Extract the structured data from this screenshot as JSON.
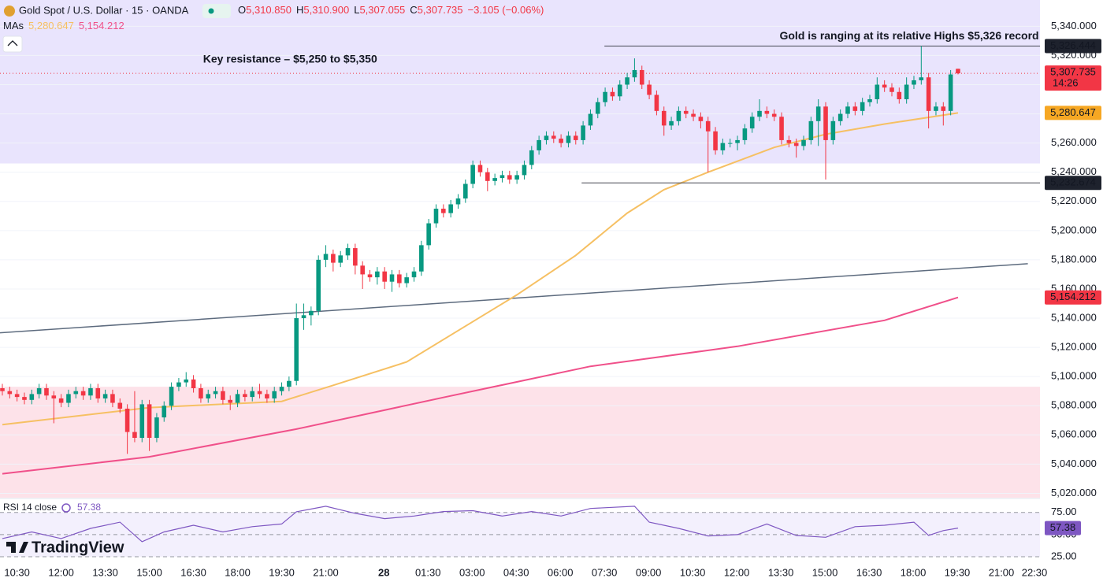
{
  "chart_data": {
    "type": "candlestick",
    "title": "Gold Spot / U.S. Dollar · 15 · OANDA",
    "ohlc_header": [
      {
        "key": "O",
        "value": "5,310.850"
      },
      {
        "key": "H",
        "value": "5,310.900"
      },
      {
        "key": "L",
        "value": "5,307.055"
      },
      {
        "key": "C",
        "value": "5,307.735"
      }
    ],
    "change": "−3.105 (−0.06%)",
    "ma_header": {
      "label": "MAs",
      "values": [
        "5,280.647",
        "5,154.212"
      ]
    },
    "up_color": "#089981",
    "down_color": "#f23645",
    "open": [
      5092,
      5090,
      5088,
      5086,
      5084,
      5088,
      5092,
      5087,
      5085,
      5082,
      5088,
      5090,
      5087,
      5092,
      5085,
      5088,
      5082,
      5078,
      5062,
      5058,
      5081,
      5058,
      5072,
      5080,
      5093,
      5096,
      5098,
      5092,
      5085,
      5088,
      5090,
      5084,
      5082,
      5088,
      5086,
      5090,
      5088,
      5085,
      5090,
      5093,
      5097,
      5140,
      5142,
      5145,
      5180,
      5184,
      5178,
      5183,
      5188,
      5176,
      5170,
      5168,
      5172,
      5165,
      5170,
      5164,
      5168,
      5172,
      5190,
      5205,
      5215,
      5212,
      5218,
      5222,
      5232,
      5245,
      5240,
      5234,
      5236,
      5238,
      5235,
      5238,
      5245,
      5255,
      5262,
      5265,
      5263,
      5260,
      5265,
      5262,
      5272,
      5280,
      5288,
      5295,
      5292,
      5300,
      5305,
      5310,
      5300,
      5293,
      5282,
      5272,
      5275,
      5282,
      5280,
      5278,
      5275,
      5268,
      5255,
      5260,
      5260,
      5262,
      5270,
      5278,
      5282,
      5280,
      5278,
      5262,
      5260,
      5258,
      5262,
      5275,
      5285,
      5262,
      5275,
      5280,
      5285,
      5282,
      5288,
      5290,
      5300,
      5298,
      5295,
      5290,
      5300,
      5303,
      5305,
      5282,
      5285,
      5282,
      5310.85
    ],
    "high": [
      5095,
      5093,
      5091,
      5089,
      5091,
      5095,
      5095,
      5090,
      5088,
      5091,
      5093,
      5093,
      5095,
      5095,
      5091,
      5091,
      5085,
      5081,
      5090,
      5084,
      5084,
      5075,
      5083,
      5096,
      5099,
      5103,
      5101,
      5095,
      5091,
      5093,
      5093,
      5087,
      5091,
      5091,
      5093,
      5095,
      5091,
      5093,
      5096,
      5100,
      5150,
      5150,
      5148,
      5183,
      5190,
      5187,
      5186,
      5191,
      5191,
      5179,
      5173,
      5175,
      5175,
      5173,
      5173,
      5171,
      5175,
      5193,
      5208,
      5218,
      5218,
      5221,
      5225,
      5235,
      5248,
      5248,
      5243,
      5239,
      5241,
      5241,
      5241,
      5248,
      5258,
      5265,
      5268,
      5268,
      5266,
      5268,
      5268,
      5275,
      5283,
      5291,
      5298,
      5298,
      5303,
      5308,
      5318,
      5313,
      5303,
      5296,
      5285,
      5278,
      5285,
      5285,
      5283,
      5281,
      5278,
      5271,
      5263,
      5263,
      5265,
      5273,
      5281,
      5290,
      5285,
      5283,
      5281,
      5265,
      5263,
      5265,
      5278,
      5290,
      5288,
      5278,
      5283,
      5288,
      5288,
      5291,
      5293,
      5305,
      5303,
      5301,
      5298,
      5305,
      5306,
      5326.444,
      5308,
      5288,
      5288,
      5310,
      5310.9
    ],
    "low": [
      5087,
      5085,
      5083,
      5081,
      5081,
      5085,
      5084,
      5068,
      5079,
      5079,
      5085,
      5084,
      5084,
      5082,
      5082,
      5079,
      5075,
      5047,
      5055,
      5055,
      5049,
      5055,
      5069,
      5077,
      5090,
      5093,
      5089,
      5082,
      5082,
      5085,
      5081,
      5077,
      5079,
      5083,
      5083,
      5085,
      5082,
      5082,
      5087,
      5090,
      5094,
      5132,
      5135,
      5142,
      5175,
      5172,
      5175,
      5180,
      5170,
      5160,
      5165,
      5163,
      5160,
      5158,
      5161,
      5161,
      5165,
      5169,
      5187,
      5202,
      5209,
      5209,
      5215,
      5219,
      5229,
      5237,
      5227,
      5231,
      5233,
      5232,
      5232,
      5235,
      5242,
      5252,
      5259,
      5260,
      5257,
      5257,
      5259,
      5259,
      5269,
      5277,
      5285,
      5289,
      5289,
      5297,
      5302,
      5297,
      5290,
      5279,
      5265,
      5269,
      5272,
      5277,
      5275,
      5270,
      5240,
      5252,
      5252,
      5257,
      5255,
      5259,
      5267,
      5275,
      5277,
      5275,
      5259,
      5257,
      5250,
      5255,
      5259,
      5258,
      5235,
      5259,
      5272,
      5277,
      5279,
      5279,
      5285,
      5287,
      5295,
      5292,
      5287,
      5287,
      5297,
      5300,
      5270,
      5279,
      5272,
      5279,
      5307.055
    ],
    "close": [
      5090,
      5088,
      5086,
      5084,
      5088,
      5092,
      5087,
      5085,
      5082,
      5088,
      5090,
      5087,
      5092,
      5085,
      5088,
      5082,
      5078,
      5062,
      5058,
      5081,
      5058,
      5072,
      5080,
      5093,
      5096,
      5098,
      5092,
      5085,
      5088,
      5090,
      5084,
      5082,
      5088,
      5086,
      5090,
      5088,
      5085,
      5090,
      5093,
      5097,
      5140,
      5142,
      5145,
      5180,
      5184,
      5178,
      5183,
      5188,
      5176,
      5170,
      5168,
      5172,
      5165,
      5170,
      5164,
      5168,
      5172,
      5190,
      5205,
      5215,
      5212,
      5218,
      5222,
      5232,
      5245,
      5240,
      5234,
      5236,
      5238,
      5235,
      5238,
      5245,
      5255,
      5262,
      5265,
      5263,
      5260,
      5265,
      5262,
      5272,
      5280,
      5288,
      5295,
      5292,
      5300,
      5305,
      5310,
      5300,
      5293,
      5282,
      5272,
      5275,
      5282,
      5280,
      5278,
      5275,
      5268,
      5255,
      5260,
      5260,
      5262,
      5270,
      5278,
      5282,
      5280,
      5278,
      5262,
      5260,
      5258,
      5262,
      5275,
      5285,
      5262,
      5275,
      5280,
      5285,
      5282,
      5288,
      5290,
      5300,
      5298,
      5295,
      5290,
      5300,
      5303,
      5305,
      5282,
      5285,
      5282,
      5307,
      5307.735
    ],
    "moving_averages": [
      {
        "color": "#f6c063",
        "x": [
          0,
          20,
          38,
          45,
          55,
          62,
          70,
          78,
          85,
          90,
          96,
          105,
          112,
          120,
          130
        ],
        "values": [
          5067,
          5078.7,
          5083,
          5094,
          5110,
          5131.5,
          5156,
          5183,
          5212,
          5228,
          5240,
          5257,
          5266,
          5273,
          5280.647
        ]
      },
      {
        "color": "#f0508a",
        "x": [
          0,
          20,
          40,
          60,
          80,
          100,
          120,
          130
        ],
        "values": [
          5033.4,
          5045,
          5064,
          5085.7,
          5107,
          5120.7,
          5138.5,
          5154.212
        ]
      }
    ],
    "trend_line": {
      "color": "#5d6b7e",
      "x": [
        -0.32,
        139.5
      ],
      "values": [
        5130,
        5177.3
      ]
    },
    "zones": [
      {
        "color": "#e9e4fd",
        "range": [
          5246,
          5358
        ]
      },
      {
        "color": "#fde2e9",
        "range": [
          5017,
          5093
        ]
      }
    ],
    "levels": [
      {
        "value": 5326.444,
        "x_start": 81.9
      },
      {
        "value": 5232.674,
        "x_start": 78.8
      }
    ],
    "annotations": [
      {
        "text": "Key resistance – $5,250 to $5,350",
        "x": 27.3,
        "y": 5317
      },
      {
        "text": "Gold is ranging at its relative Highs $5,326 record",
        "x": 141,
        "y": 5333
      }
    ],
    "last_price": {
      "value": 5307.735,
      "label": "5,307.735",
      "countdown": "14:26"
    },
    "price_tags": [
      {
        "value": 5326.444,
        "label": "5,326.444",
        "color": "#1e222d"
      },
      {
        "value": 5280.647,
        "label": "5,280.647",
        "color": "#f6a723"
      },
      {
        "value": 5232.674,
        "label": "5,232.674",
        "color": "#1e222d"
      },
      {
        "value": 5154.212,
        "label": "5,154.212",
        "color": "#f23645"
      }
    ],
    "xlim": [
      -0.32,
      141.15
    ],
    "xticks": [
      {
        "value": 2,
        "label": "10:30"
      },
      {
        "value": 8,
        "label": "12:00"
      },
      {
        "value": 14,
        "label": "13:30"
      },
      {
        "value": 20,
        "label": "15:00"
      },
      {
        "value": 26,
        "label": "16:30"
      },
      {
        "value": 32,
        "label": "18:00"
      },
      {
        "value": 38,
        "label": "19:30"
      },
      {
        "value": 44,
        "label": "21:00"
      },
      {
        "value": 51.9,
        "label": "28"
      },
      {
        "value": 57.9,
        "label": "01:30"
      },
      {
        "value": 63.9,
        "label": "03:00"
      },
      {
        "value": 69.9,
        "label": "04:30"
      },
      {
        "value": 75.9,
        "label": "06:00"
      },
      {
        "value": 81.9,
        "label": "07:30"
      },
      {
        "value": 87.9,
        "label": "09:00"
      },
      {
        "value": 93.9,
        "label": "10:30"
      },
      {
        "value": 99.9,
        "label": "12:00"
      },
      {
        "value": 105.9,
        "label": "13:30"
      },
      {
        "value": 111.9,
        "label": "15:00"
      },
      {
        "value": 117.9,
        "label": "16:30"
      },
      {
        "value": 123.9,
        "label": "18:00"
      },
      {
        "value": 129.9,
        "label": "19:30"
      },
      {
        "value": 135.9,
        "label": "21:00"
      },
      {
        "value": 140.4,
        "label": "22:30"
      }
    ],
    "ylim": [
      5017,
      5358
    ],
    "yticks": [
      {
        "value": 5020,
        "label": "5,020.000"
      },
      {
        "value": 5040,
        "label": "5,040.000"
      },
      {
        "value": 5060,
        "label": "5,060.000"
      },
      {
        "value": 5080,
        "label": "5,080.000"
      },
      {
        "value": 5100,
        "label": "5,100.000"
      },
      {
        "value": 5120,
        "label": "5,120.000"
      },
      {
        "value": 5140,
        "label": "5,140.000"
      },
      {
        "value": 5160,
        "label": "5,160.000"
      },
      {
        "value": 5180,
        "label": "5,180.000"
      },
      {
        "value": 5200,
        "label": "5,200.000"
      },
      {
        "value": 5220,
        "label": "5,220.000"
      },
      {
        "value": 5240,
        "label": "5,240.000"
      },
      {
        "value": 5260,
        "label": "5,260.000"
      },
      {
        "value": 5280,
        "label": "5,280.000"
      },
      {
        "value": 5300,
        "label": "5,300.000"
      },
      {
        "value": 5320,
        "label": "5,320.000"
      },
      {
        "value": 5340,
        "label": "5,340.000"
      }
    ],
    "rsi": {
      "label": "RSI 14 close",
      "value_label": "57.38",
      "color": "#7e57c2",
      "x": [
        0,
        4,
        8,
        12,
        16,
        19,
        22,
        26,
        30,
        34,
        38,
        40,
        44,
        48,
        52,
        56,
        60,
        64,
        68,
        72,
        76,
        80,
        86,
        88,
        92,
        96,
        100,
        104,
        108,
        112,
        116,
        120,
        124,
        126,
        128,
        130
      ],
      "values": [
        45.5,
        53,
        45.5,
        57,
        64,
        42,
        53,
        60.6,
        53,
        59,
        62,
        75.8,
        82,
        74,
        68,
        71,
        76,
        77,
        71,
        76,
        71,
        79.5,
        82,
        64,
        57,
        48.5,
        50,
        62,
        49,
        47,
        59,
        60.6,
        64,
        49,
        54.5,
        57.38
      ],
      "ylim": [
        17,
        89
      ],
      "yticks": [
        {
          "value": 25,
          "label": "25.00"
        },
        {
          "value": 50,
          "label": "50.00"
        },
        {
          "value": 75,
          "label": "75.00"
        }
      ]
    },
    "brand": "TradingView"
  }
}
